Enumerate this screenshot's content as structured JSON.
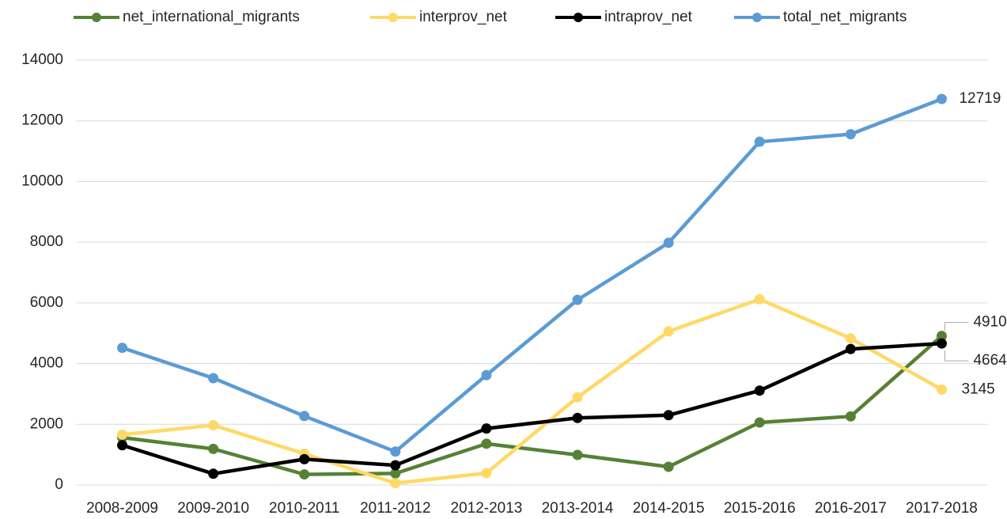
{
  "chart_data": {
    "type": "line",
    "categories": [
      "2008-2009",
      "2009-2010",
      "2010-2011",
      "2011-2012",
      "2012-2013",
      "2013-2014",
      "2014-2015",
      "2015-2016",
      "2016-2017",
      "2017-2018"
    ],
    "series": [
      {
        "name": "net_international_migrants",
        "color": "#548235",
        "values": [
          1560,
          1190,
          350,
          380,
          1360,
          990,
          600,
          2060,
          2260,
          4910
        ]
      },
      {
        "name": "interprov_net",
        "color": "#ffd966",
        "values": [
          1660,
          1970,
          1030,
          60,
          390,
          2890,
          5060,
          6120,
          4830,
          3145
        ]
      },
      {
        "name": "intraprov_net",
        "color": "#000000",
        "values": [
          1310,
          370,
          850,
          650,
          1860,
          2210,
          2300,
          3110,
          4480,
          4664
        ]
      },
      {
        "name": "total_net_migrants",
        "color": "#5b9bd5",
        "values": [
          4520,
          3520,
          2270,
          1100,
          3620,
          6100,
          7980,
          11310,
          11560,
          12719
        ]
      }
    ],
    "data_labels": "last",
    "ylim": [
      0,
      14000
    ],
    "yticks": [
      0,
      2000,
      4000,
      6000,
      8000,
      10000,
      12000,
      14000
    ],
    "grid": true,
    "legend": "top"
  }
}
